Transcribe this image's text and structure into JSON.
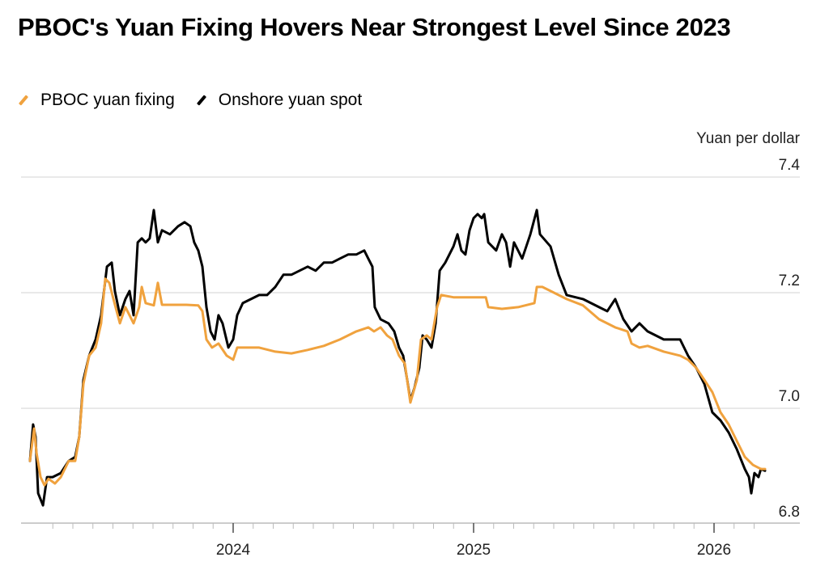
{
  "chart_data": {
    "type": "line",
    "title": "PBOC's Yuan Fixing Hovers Near Strongest Level Since 2023",
    "ylabel": "Yuan per dollar",
    "xlabel": "",
    "ylim": [
      6.8,
      7.4
    ],
    "xlim": [
      2023.17,
      2026.37
    ],
    "y_ticks": [
      "7.4",
      "7.2",
      "7.0",
      "6.8"
    ],
    "y_tick_values": [
      7.4,
      7.2,
      7.0,
      6.8
    ],
    "x_ticks": [
      "2024",
      "2025",
      "2026"
    ],
    "x_tick_values": [
      2024,
      2025,
      2026
    ],
    "grid": true,
    "legend_placement": "top-left",
    "colors": {
      "fixing": "#f0a23e",
      "spot": "#000000",
      "grid": "#d3d3d3"
    },
    "series": [
      {
        "name": "PBOC yuan fixing",
        "color": "#f0a23e",
        "points": [
          [
            2023.155,
            6.909
          ],
          [
            2023.172,
            6.965
          ],
          [
            2023.182,
            6.923
          ],
          [
            2023.199,
            6.881
          ],
          [
            2023.215,
            6.867
          ],
          [
            2023.232,
            6.878
          ],
          [
            2023.259,
            6.87
          ],
          [
            2023.283,
            6.881
          ],
          [
            2023.316,
            6.909
          ],
          [
            2023.343,
            6.909
          ],
          [
            2023.36,
            6.951
          ],
          [
            2023.377,
            7.042
          ],
          [
            2023.401,
            7.091
          ],
          [
            2023.428,
            7.105
          ],
          [
            2023.451,
            7.147
          ],
          [
            2023.468,
            7.224
          ],
          [
            2023.485,
            7.217
          ],
          [
            2023.502,
            7.189
          ],
          [
            2023.529,
            7.147
          ],
          [
            2023.552,
            7.175
          ],
          [
            2023.569,
            7.161
          ],
          [
            2023.586,
            7.147
          ],
          [
            2023.609,
            7.175
          ],
          [
            2023.62,
            7.21
          ],
          [
            2023.636,
            7.182
          ],
          [
            2023.67,
            7.178
          ],
          [
            2023.687,
            7.217
          ],
          [
            2023.704,
            7.179
          ],
          [
            2023.805,
            7.179
          ],
          [
            2023.855,
            7.178
          ],
          [
            2023.872,
            7.168
          ],
          [
            2023.889,
            7.119
          ],
          [
            2023.912,
            7.105
          ],
          [
            2023.939,
            7.112
          ],
          [
            2023.973,
            7.091
          ],
          [
            2024.0,
            7.084
          ],
          [
            2024.017,
            7.105
          ],
          [
            2024.108,
            7.105
          ],
          [
            2024.175,
            7.098
          ],
          [
            2024.242,
            7.095
          ],
          [
            2024.31,
            7.101
          ],
          [
            2024.377,
            7.108
          ],
          [
            2024.444,
            7.119
          ],
          [
            2024.512,
            7.133
          ],
          [
            2024.562,
            7.14
          ],
          [
            2024.586,
            7.133
          ],
          [
            2024.613,
            7.14
          ],
          [
            2024.64,
            7.126
          ],
          [
            2024.663,
            7.119
          ],
          [
            2024.69,
            7.091
          ],
          [
            2024.714,
            7.077
          ],
          [
            2024.737,
            7.01
          ],
          [
            2024.764,
            7.049
          ],
          [
            2024.781,
            7.119
          ],
          [
            2024.805,
            7.126
          ],
          [
            2024.825,
            7.119
          ],
          [
            2024.848,
            7.175
          ],
          [
            2024.865,
            7.196
          ],
          [
            2024.916,
            7.192
          ],
          [
            2024.983,
            7.192
          ],
          [
            2025.051,
            7.192
          ],
          [
            2025.061,
            7.175
          ],
          [
            2025.118,
            7.172
          ],
          [
            2025.185,
            7.175
          ],
          [
            2025.253,
            7.182
          ],
          [
            2025.263,
            7.21
          ],
          [
            2025.286,
            7.21
          ],
          [
            2025.32,
            7.203
          ],
          [
            2025.387,
            7.189
          ],
          [
            2025.455,
            7.178
          ],
          [
            2025.522,
            7.154
          ],
          [
            2025.589,
            7.14
          ],
          [
            2025.64,
            7.133
          ],
          [
            2025.657,
            7.112
          ],
          [
            2025.69,
            7.105
          ],
          [
            2025.724,
            7.108
          ],
          [
            2025.791,
            7.098
          ],
          [
            2025.859,
            7.091
          ],
          [
            2025.892,
            7.084
          ],
          [
            2025.926,
            7.07
          ],
          [
            2025.96,
            7.049
          ],
          [
            2025.993,
            7.028
          ],
          [
            2026.027,
            6.993
          ],
          [
            2026.061,
            6.972
          ],
          [
            2026.094,
            6.944
          ],
          [
            2026.128,
            6.916
          ],
          [
            2026.162,
            6.902
          ],
          [
            2026.195,
            6.895
          ],
          [
            2026.212,
            6.895
          ]
        ]
      },
      {
        "name": "Onshore yuan spot",
        "color": "#000000",
        "points": [
          [
            2023.155,
            6.909
          ],
          [
            2023.168,
            6.972
          ],
          [
            2023.178,
            6.951
          ],
          [
            2023.189,
            6.853
          ],
          [
            2023.209,
            6.832
          ],
          [
            2023.226,
            6.881
          ],
          [
            2023.249,
            6.881
          ],
          [
            2023.283,
            6.888
          ],
          [
            2023.316,
            6.909
          ],
          [
            2023.343,
            6.916
          ],
          [
            2023.36,
            6.951
          ],
          [
            2023.377,
            7.049
          ],
          [
            2023.401,
            7.091
          ],
          [
            2023.428,
            7.119
          ],
          [
            2023.451,
            7.161
          ],
          [
            2023.475,
            7.245
          ],
          [
            2023.495,
            7.252
          ],
          [
            2023.508,
            7.203
          ],
          [
            2023.529,
            7.161
          ],
          [
            2023.552,
            7.189
          ],
          [
            2023.569,
            7.203
          ],
          [
            2023.586,
            7.161
          ],
          [
            2023.603,
            7.287
          ],
          [
            2023.62,
            7.294
          ],
          [
            2023.636,
            7.287
          ],
          [
            2023.653,
            7.294
          ],
          [
            2023.67,
            7.343
          ],
          [
            2023.687,
            7.287
          ],
          [
            2023.704,
            7.308
          ],
          [
            2023.737,
            7.301
          ],
          [
            2023.771,
            7.315
          ],
          [
            2023.798,
            7.322
          ],
          [
            2023.822,
            7.315
          ],
          [
            2023.838,
            7.287
          ],
          [
            2023.855,
            7.273
          ],
          [
            2023.872,
            7.245
          ],
          [
            2023.889,
            7.175
          ],
          [
            2023.906,
            7.133
          ],
          [
            2023.923,
            7.119
          ],
          [
            2023.939,
            7.161
          ],
          [
            2023.956,
            7.147
          ],
          [
            2023.98,
            7.105
          ],
          [
            2024.0,
            7.119
          ],
          [
            2024.017,
            7.161
          ],
          [
            2024.04,
            7.182
          ],
          [
            2024.074,
            7.189
          ],
          [
            2024.108,
            7.196
          ],
          [
            2024.141,
            7.196
          ],
          [
            2024.175,
            7.21
          ],
          [
            2024.209,
            7.231
          ],
          [
            2024.242,
            7.231
          ],
          [
            2024.276,
            7.238
          ],
          [
            2024.31,
            7.245
          ],
          [
            2024.343,
            7.238
          ],
          [
            2024.377,
            7.252
          ],
          [
            2024.411,
            7.252
          ],
          [
            2024.444,
            7.259
          ],
          [
            2024.478,
            7.266
          ],
          [
            2024.512,
            7.266
          ],
          [
            2024.545,
            7.273
          ],
          [
            2024.562,
            7.259
          ],
          [
            2024.579,
            7.245
          ],
          [
            2024.589,
            7.175
          ],
          [
            2024.613,
            7.154
          ],
          [
            2024.646,
            7.147
          ],
          [
            2024.67,
            7.133
          ],
          [
            2024.69,
            7.105
          ],
          [
            2024.707,
            7.091
          ],
          [
            2024.724,
            7.049
          ],
          [
            2024.737,
            7.014
          ],
          [
            2024.754,
            7.035
          ],
          [
            2024.774,
            7.07
          ],
          [
            2024.788,
            7.126
          ],
          [
            2024.805,
            7.119
          ],
          [
            2024.825,
            7.105
          ],
          [
            2024.842,
            7.147
          ],
          [
            2024.859,
            7.238
          ],
          [
            2024.882,
            7.252
          ],
          [
            2024.916,
            7.28
          ],
          [
            2024.933,
            7.301
          ],
          [
            2024.949,
            7.273
          ],
          [
            2024.966,
            7.266
          ],
          [
            2024.983,
            7.308
          ],
          [
            2025.0,
            7.329
          ],
          [
            2025.017,
            7.336
          ],
          [
            2025.034,
            7.329
          ],
          [
            2025.044,
            7.336
          ],
          [
            2025.061,
            7.287
          ],
          [
            2025.094,
            7.273
          ],
          [
            2025.118,
            7.301
          ],
          [
            2025.135,
            7.287
          ],
          [
            2025.152,
            7.245
          ],
          [
            2025.168,
            7.287
          ],
          [
            2025.202,
            7.259
          ],
          [
            2025.236,
            7.301
          ],
          [
            2025.263,
            7.343
          ],
          [
            2025.276,
            7.301
          ],
          [
            2025.32,
            7.28
          ],
          [
            2025.354,
            7.231
          ],
          [
            2025.387,
            7.196
          ],
          [
            2025.455,
            7.189
          ],
          [
            2025.522,
            7.175
          ],
          [
            2025.556,
            7.168
          ],
          [
            2025.589,
            7.189
          ],
          [
            2025.623,
            7.154
          ],
          [
            2025.657,
            7.133
          ],
          [
            2025.69,
            7.147
          ],
          [
            2025.724,
            7.133
          ],
          [
            2025.791,
            7.119
          ],
          [
            2025.859,
            7.119
          ],
          [
            2025.892,
            7.091
          ],
          [
            2025.926,
            7.07
          ],
          [
            2025.96,
            7.042
          ],
          [
            2025.993,
            6.993
          ],
          [
            2026.027,
            6.979
          ],
          [
            2026.061,
            6.958
          ],
          [
            2026.094,
            6.93
          ],
          [
            2026.128,
            6.895
          ],
          [
            2026.145,
            6.881
          ],
          [
            2026.155,
            6.853
          ],
          [
            2026.168,
            6.888
          ],
          [
            2026.185,
            6.881
          ],
          [
            2026.195,
            6.895
          ],
          [
            2026.212,
            6.892
          ]
        ]
      }
    ]
  }
}
